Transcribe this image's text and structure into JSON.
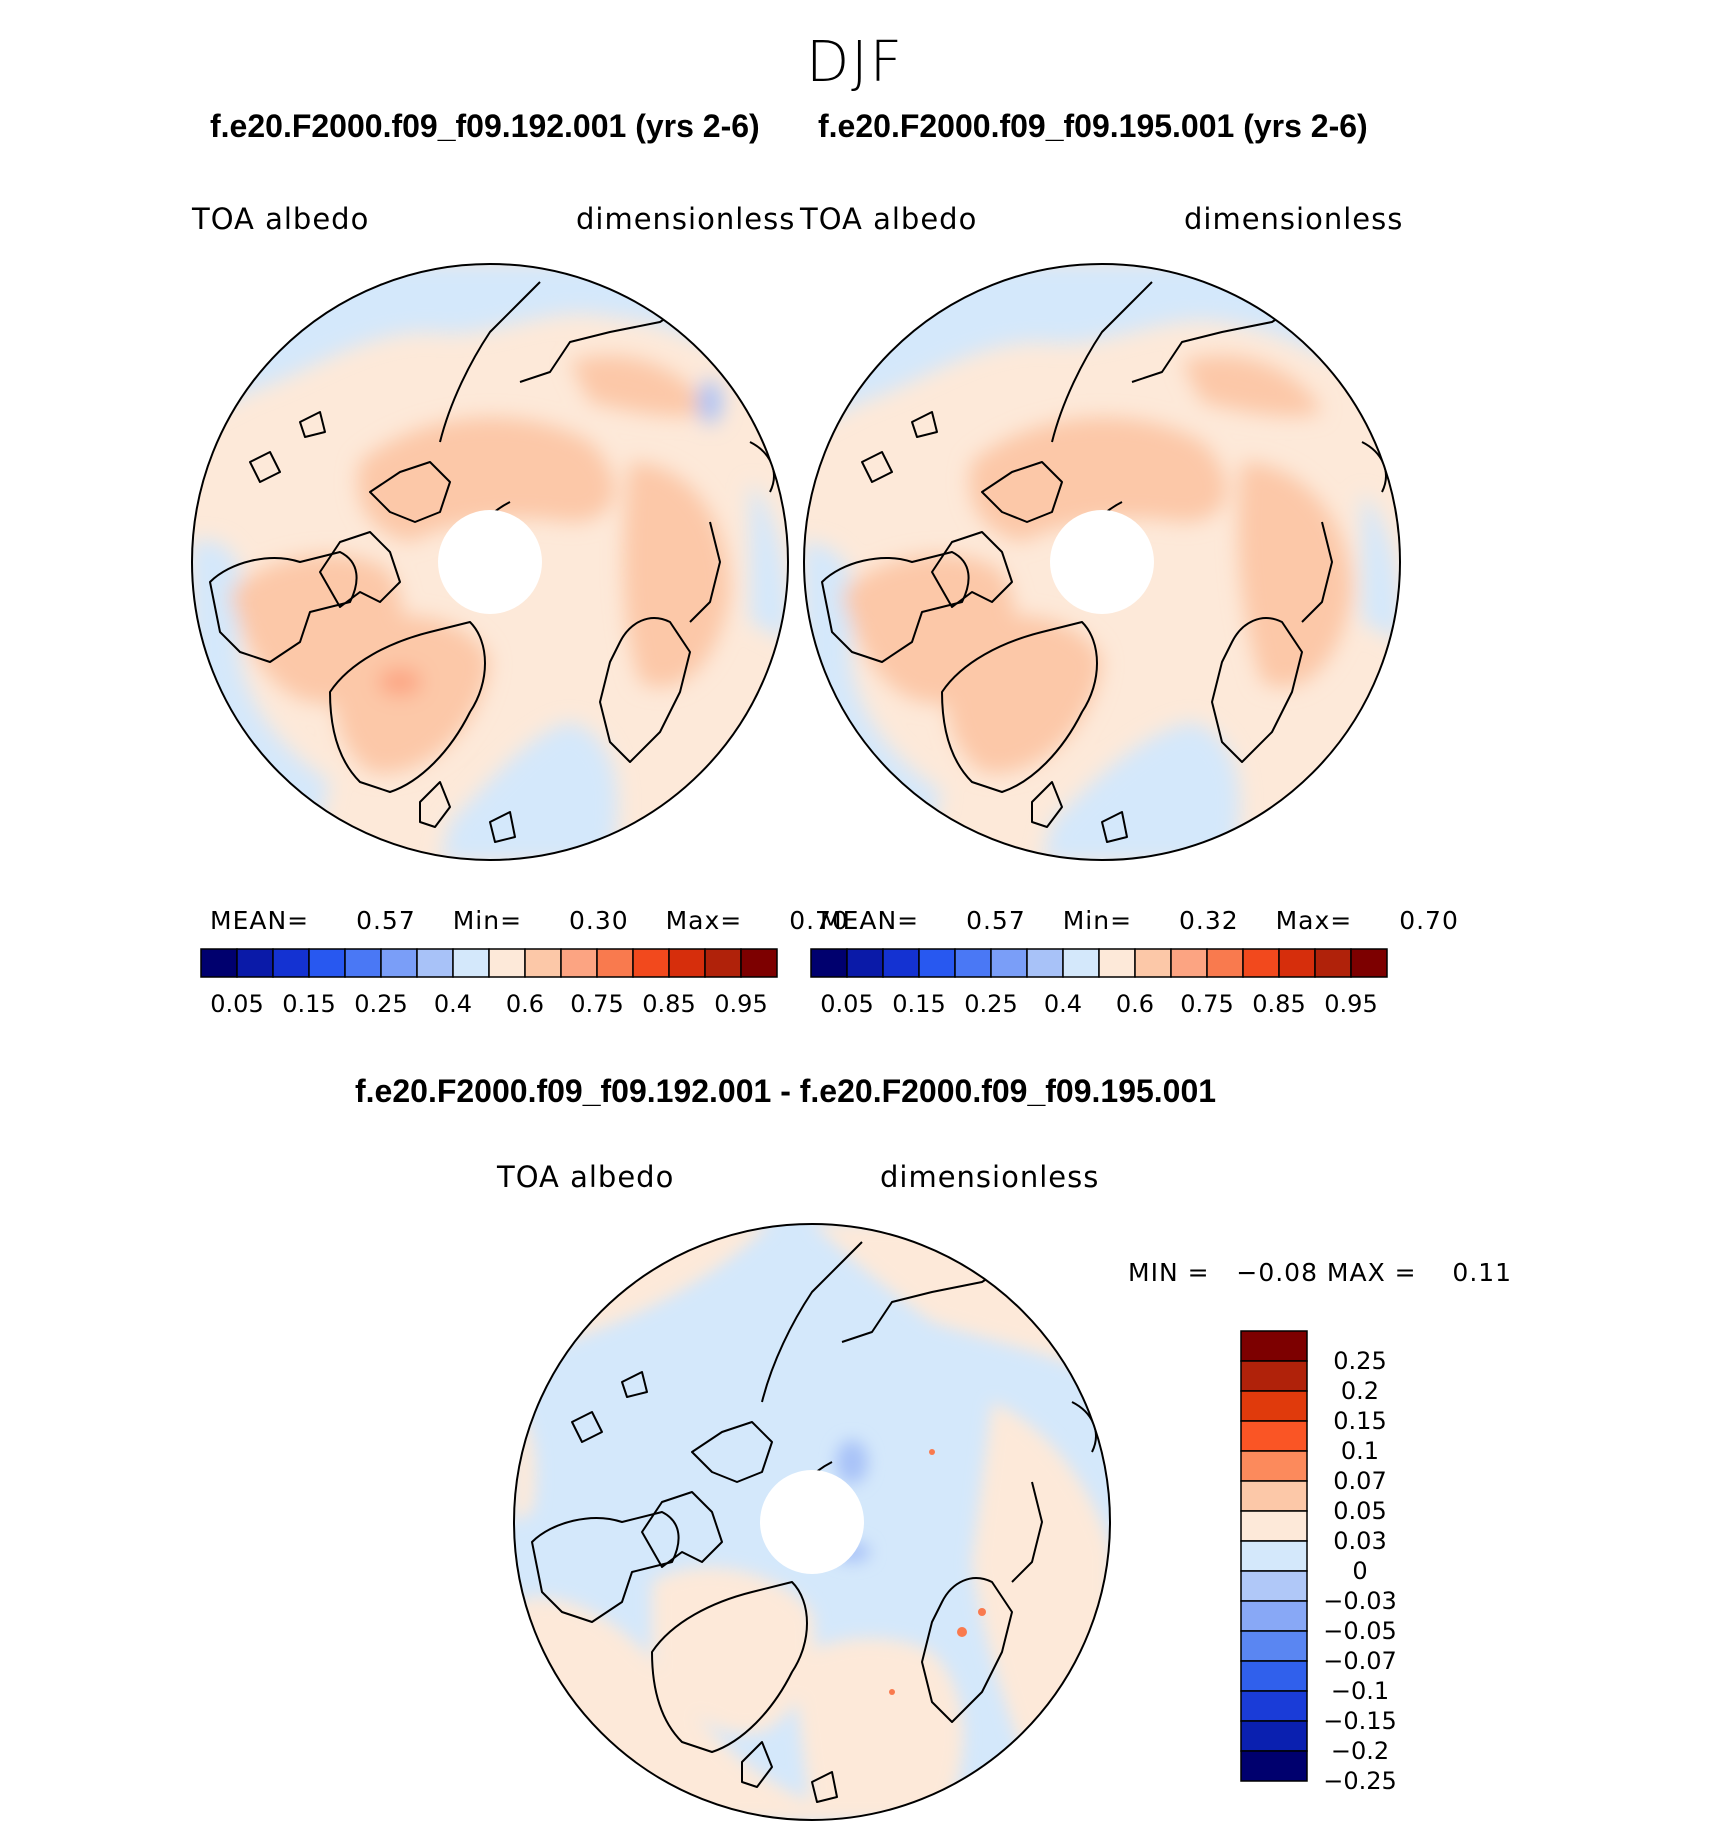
{
  "figure_title": "DJF",
  "panels": [
    {
      "title": "f.e20.F2000.f09_f09.192.001 (yrs 2-6)",
      "variable": "TOA albedo",
      "units": "dimensionless",
      "mean_label": "MEAN=",
      "mean": "0.57",
      "min_label": "Min=",
      "min": "0.30",
      "max_label": "Max=",
      "max": "0.70"
    },
    {
      "title": "f.e20.F2000.f09_f09.195.001 (yrs 2-6)",
      "variable": "TOA albedo",
      "units": "dimensionless",
      "mean_label": "MEAN=",
      "mean": "0.57",
      "min_label": "Min=",
      "min": "0.32",
      "max_label": "Max=",
      "max": "0.70"
    }
  ],
  "diff_panel": {
    "title": "f.e20.F2000.f09_f09.192.001 - f.e20.F2000.f09_f09.195.001",
    "variable": "TOA albedo",
    "units": "dimensionless",
    "minmax": "MIN =   −0.08 MAX =    0.11"
  },
  "colorbar_top": {
    "colors": [
      "#00006e",
      "#0a1aa8",
      "#1432d2",
      "#2858f0",
      "#4a78f5",
      "#7a9ef8",
      "#a8c2f8",
      "#d4e8fb",
      "#fde9d9",
      "#fcc8a8",
      "#fca482",
      "#f97a4e",
      "#f2491d",
      "#d62e0c",
      "#b0220a",
      "#7d0000"
    ],
    "tick_labels": [
      "0.05",
      "0.15",
      "0.25",
      "0.4",
      "0.6",
      "0.75",
      "0.85",
      "0.95"
    ]
  },
  "colorbar_diff": {
    "colors": [
      "#7d0000",
      "#b0220a",
      "#e03a0c",
      "#fa5525",
      "#fc8a5c",
      "#fcc8a8",
      "#fde9d9",
      "#d4e8fb",
      "#b0c8f8",
      "#88a8f6",
      "#5a86f2",
      "#3060ec",
      "#1a3cd8",
      "#0a20b0",
      "#00006e"
    ],
    "tick_labels": [
      "0.25",
      "0.2",
      "0.15",
      "0.1",
      "0.07",
      "0.05",
      "0.03",
      "0",
      "−0.03",
      "−0.05",
      "−0.07",
      "−0.1",
      "−0.15",
      "−0.2",
      "−0.25"
    ]
  },
  "map_colors": {
    "ocean_light": "#d4e8fb",
    "land_warm": "#fcc8a8",
    "pale": "#fde9d9",
    "medium_blue": "#a8c2f8"
  }
}
